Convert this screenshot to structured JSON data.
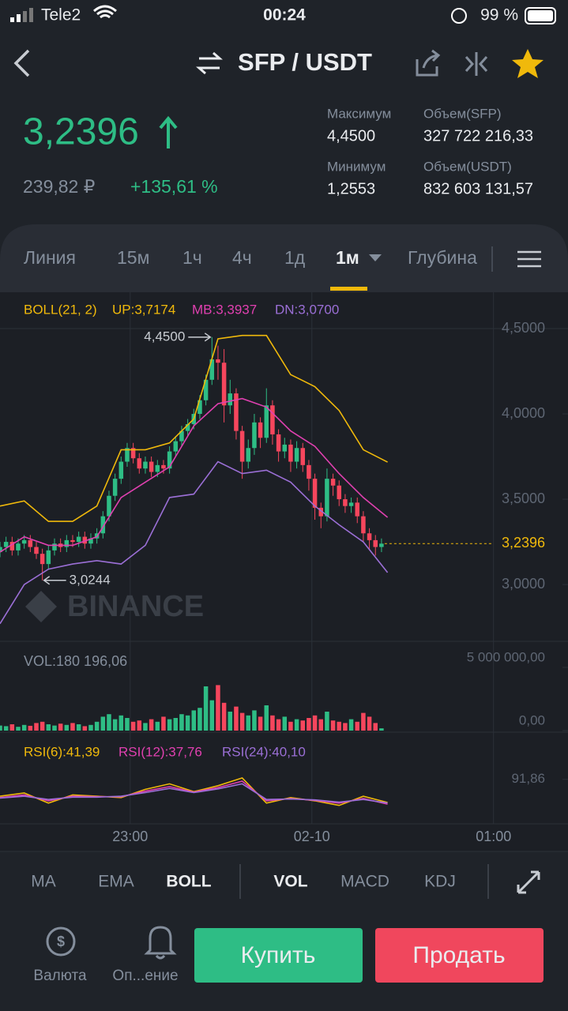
{
  "ui": {
    "status": {
      "carrier": "Tele2",
      "time": "00:24",
      "battery": "99 %"
    },
    "header": {
      "pair": "SFP / USDT"
    },
    "price": {
      "last": "3,2396",
      "fiat": "239,82 ₽",
      "change": "+135,61 %"
    },
    "stats": [
      {
        "label": "Максимум",
        "value": "4,4500"
      },
      {
        "label": "Объем(SFP)",
        "value": "327 722 216,33"
      },
      {
        "label": "Минимум",
        "value": "1,2553"
      },
      {
        "label": "Объем(USDT)",
        "value": "832 603 131,57"
      }
    ],
    "tabs": [
      "Линия",
      "15м",
      "1ч",
      "4ч",
      "1д",
      "1м",
      "Глубина"
    ],
    "watermark": "BINANCE",
    "indicators": [
      "MA",
      "EMA",
      "BOLL",
      "VOL",
      "MACD",
      "KDJ"
    ],
    "bottom": {
      "currency": "Валюта",
      "alerts": "Оп...ение",
      "buy": "Купить",
      "sell": "Продать"
    }
  },
  "chart_data": [
    {
      "type": "candlestick",
      "up_color": "#2ebd85",
      "down_color": "#f6465d",
      "legend": [
        {
          "text": "BOLL(21, 2)",
          "color": "#f0b90b"
        },
        {
          "text": "UP:3,7174",
          "color": "#f0b90b"
        },
        {
          "text": "MB:3,3937",
          "color": "#e040b0"
        },
        {
          "text": "DN:3,0700",
          "color": "#9b6fd6"
        }
      ],
      "x": [
        -43,
        -41,
        -39,
        -37,
        -35,
        -33,
        -31,
        -29,
        -27,
        -25,
        -23,
        -21,
        -19,
        -17,
        -15,
        -13,
        -11,
        -9,
        -7,
        -5,
        -3,
        -1,
        1,
        3,
        5,
        7,
        9,
        11,
        13,
        15,
        17,
        19,
        21,
        23,
        25,
        27,
        29,
        31,
        33,
        35,
        37,
        39,
        41,
        43,
        45,
        47,
        49,
        51,
        53,
        55,
        57,
        59,
        61,
        63,
        65,
        67,
        69,
        71,
        73,
        75,
        77,
        79,
        81,
        83
      ],
      "open": [
        3.19,
        3.22,
        3.25,
        3.2,
        3.24,
        3.26,
        3.22,
        3.18,
        3.12,
        3.2,
        3.24,
        3.22,
        3.26,
        3.25,
        3.28,
        3.24,
        3.27,
        3.3,
        3.4,
        3.52,
        3.62,
        3.72,
        3.8,
        3.74,
        3.68,
        3.72,
        3.66,
        3.7,
        3.68,
        3.78,
        3.84,
        3.9,
        3.94,
        4.0,
        4.08,
        4.2,
        4.32,
        4.3,
        4.05,
        4.12,
        3.9,
        3.72,
        3.8,
        3.95,
        3.86,
        4.05,
        3.88,
        3.78,
        3.82,
        3.72,
        3.8,
        3.7,
        3.62,
        3.45,
        3.4,
        3.62,
        3.58,
        3.5,
        3.46,
        3.48,
        3.4,
        3.3,
        3.26,
        3.22
      ],
      "high": [
        3.25,
        3.28,
        3.28,
        3.27,
        3.29,
        3.29,
        3.25,
        3.21,
        3.23,
        3.27,
        3.27,
        3.29,
        3.29,
        3.31,
        3.31,
        3.3,
        3.33,
        3.43,
        3.55,
        3.65,
        3.75,
        3.83,
        3.83,
        3.77,
        3.75,
        3.75,
        3.73,
        3.73,
        3.81,
        3.87,
        3.93,
        3.97,
        4.03,
        4.11,
        4.23,
        4.45,
        4.4,
        4.38,
        4.2,
        4.15,
        3.93,
        3.85,
        4.0,
        3.98,
        4.15,
        4.08,
        3.91,
        3.86,
        3.85,
        3.84,
        3.83,
        3.73,
        3.65,
        3.48,
        3.68,
        3.65,
        3.61,
        3.53,
        3.51,
        3.51,
        3.43,
        3.33,
        3.29,
        3.27
      ],
      "low": [
        3.16,
        3.19,
        3.17,
        3.17,
        3.21,
        3.19,
        3.15,
        3.0244,
        3.09,
        3.17,
        3.19,
        3.19,
        3.22,
        3.22,
        3.21,
        3.21,
        3.24,
        3.27,
        3.37,
        3.49,
        3.59,
        3.69,
        3.71,
        3.65,
        3.65,
        3.63,
        3.63,
        3.65,
        3.65,
        3.75,
        3.81,
        3.87,
        3.91,
        3.97,
        4.05,
        4.17,
        4.2,
        3.95,
        4.0,
        3.85,
        3.62,
        3.68,
        3.76,
        3.8,
        3.83,
        3.82,
        3.72,
        3.74,
        3.66,
        3.68,
        3.66,
        3.55,
        3.38,
        3.33,
        3.37,
        3.52,
        3.46,
        3.42,
        3.42,
        3.36,
        3.25,
        3.2,
        3.17,
        3.19
      ],
      "close": [
        3.22,
        3.25,
        3.2,
        3.24,
        3.26,
        3.22,
        3.18,
        3.12,
        3.2,
        3.24,
        3.22,
        3.26,
        3.25,
        3.28,
        3.24,
        3.27,
        3.3,
        3.4,
        3.52,
        3.62,
        3.72,
        3.8,
        3.74,
        3.68,
        3.72,
        3.66,
        3.7,
        3.68,
        3.78,
        3.84,
        3.9,
        3.94,
        4.0,
        4.08,
        4.2,
        4.32,
        4.3,
        4.05,
        4.12,
        3.9,
        3.72,
        3.8,
        3.95,
        3.86,
        4.05,
        3.88,
        3.78,
        3.82,
        3.72,
        3.8,
        3.7,
        3.62,
        3.45,
        3.4,
        3.62,
        3.58,
        3.5,
        3.46,
        3.48,
        3.4,
        3.3,
        3.26,
        3.22,
        3.2396
      ],
      "boll": {
        "x": [
          -43,
          -35,
          -27,
          -19,
          -11,
          -3,
          5,
          13,
          21,
          29,
          37,
          45,
          53,
          61,
          69,
          77,
          85
        ],
        "series": [
          {
            "color": "#f0b90b",
            "values": [
              3.46,
              3.49,
              3.37,
              3.37,
              3.46,
              3.79,
              3.79,
              3.83,
              3.97,
              4.44,
              4.46,
              4.46,
              4.23,
              4.16,
              4.02,
              3.79,
              3.7174
            ]
          },
          {
            "color": "#e040b0",
            "values": [
              3.19,
              3.28,
              3.23,
              3.23,
              3.28,
              3.51,
              3.6,
              3.69,
              3.93,
              4.06,
              4.09,
              4.04,
              3.9,
              3.81,
              3.65,
              3.51,
              3.3937
            ]
          },
          {
            "color": "#9b6fd6",
            "values": [
              2.77,
              3.0,
              3.09,
              3.12,
              3.14,
              3.12,
              3.23,
              3.51,
              3.53,
              3.72,
              3.65,
              3.67,
              3.6,
              3.46,
              3.35,
              3.25,
              3.07
            ]
          }
        ]
      },
      "last": {
        "value": 3.2396,
        "label": "3,2396"
      },
      "high_label": {
        "value": 4.45,
        "label": "4,4500"
      },
      "low_label": {
        "value": 3.0244,
        "label": "3,0244"
      },
      "xlim": [
        -43,
        144.6
      ],
      "xticks": [
        {
          "value": 0,
          "label": "23:00"
        },
        {
          "value": 60,
          "label": "02-10"
        },
        {
          "value": 120,
          "label": "01:00"
        }
      ],
      "ylim": [
        2.667,
        4.713
      ],
      "yticks": [
        {
          "value": 4.5,
          "label": "4,5000"
        },
        {
          "value": 4.0,
          "label": "4,0000"
        },
        {
          "value": 3.5,
          "label": "3,5000"
        },
        {
          "value": 3.0,
          "label": "3,0000"
        }
      ],
      "grid": true
    },
    {
      "type": "bar",
      "label": "VOL:180 196,06",
      "values": [
        400000,
        350000,
        500000,
        300000,
        450000,
        380000,
        600000,
        700000,
        500000,
        400000,
        550000,
        450000,
        600000,
        500000,
        350000,
        450000,
        700000,
        1100000,
        1300000,
        900000,
        1200000,
        1000000,
        700000,
        800000,
        600000,
        900000,
        700000,
        1100000,
        900000,
        1000000,
        1300000,
        1200000,
        1600000,
        1800000,
        3500000,
        2400000,
        3600000,
        2200000,
        1500000,
        1900000,
        1400000,
        1200000,
        1600000,
        1100000,
        2000000,
        1200000,
        900000,
        1100000,
        700000,
        900000,
        800000,
        1000000,
        1200000,
        900000,
        1500000,
        800000,
        700000,
        600000,
        900000,
        700000,
        1400000,
        1100000,
        600000,
        180196.06
      ],
      "ylim": [
        0,
        5000000
      ],
      "yticks": [
        {
          "value": 5000000,
          "label": "5 000 000,00"
        },
        {
          "value": 0,
          "label": "0,00"
        }
      ]
    },
    {
      "type": "line",
      "x": [
        -43,
        -35,
        -27,
        -19,
        -11,
        -3,
        5,
        13,
        21,
        29,
        37,
        45,
        53,
        61,
        69,
        77,
        85
      ],
      "series": [
        {
          "name": "RSI(6):41,39",
          "color": "#f0b90b",
          "values": [
            55,
            62,
            40,
            58,
            55,
            52,
            70,
            82,
            65,
            78,
            95,
            40,
            52,
            45,
            35,
            55,
            41.39
          ]
        },
        {
          "name": "RSI(12):37,76",
          "color": "#e040b0",
          "values": [
            52,
            58,
            45,
            55,
            54,
            54,
            66,
            76,
            64,
            74,
            88,
            45,
            50,
            46,
            40,
            50,
            37.76
          ]
        },
        {
          "name": "RSI(24):40,10",
          "color": "#9b6fd6",
          "values": [
            51,
            55,
            48,
            53,
            53,
            55,
            63,
            72,
            63,
            71,
            82,
            48,
            49,
            47,
            42,
            48,
            40.1
          ]
        }
      ],
      "ylim": [
        0,
        100
      ],
      "yticks": [
        {
          "value": 91.86,
          "label": "91,86"
        }
      ]
    }
  ]
}
